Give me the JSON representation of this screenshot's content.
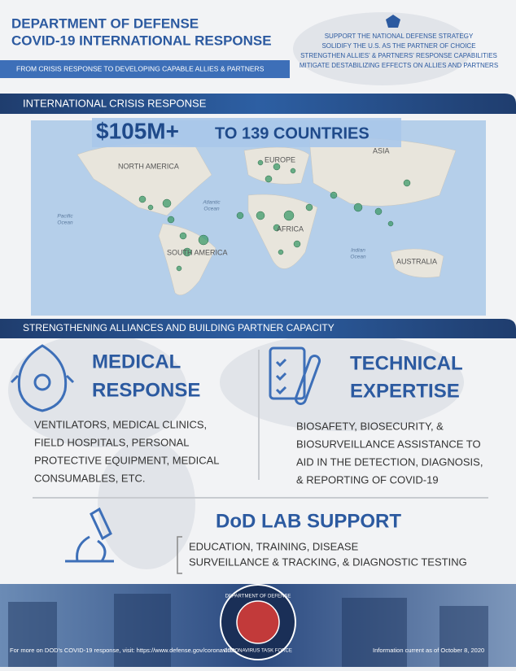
{
  "header": {
    "title": [
      "DEPARTMENT OF DEFENSE",
      "COVID-19 INTERNATIONAL RESPONSE"
    ],
    "subtitle": "FROM CRISIS RESPONSE TO DEVELOPING CAPABLE ALLIES & PARTNERS",
    "goals": [
      "SUPPORT THE NATIONAL DEFENSE STRATEGY",
      "SOLIDIFY THE U.S. AS THE PARTNER OF CHOICE",
      "STRENGTHEN ALLIES' & PARTNERS' RESPONSE CAPABILITIES",
      "MITIGATE DESTABILIZING EFFECTS ON ALLIES AND PARTNERS"
    ]
  },
  "crisis": {
    "heading": "INTERNATIONAL CRISIS RESPONSE",
    "amount": "$105M+",
    "countries": "TO 139 COUNTRIES",
    "map_labels": [
      "NORTH AMERICA",
      "EUROPE",
      "ASIA",
      "AFRICA",
      "SOUTH AMERICA",
      "AUSTRALIA"
    ],
    "ocean_labels": [
      [
        "Atlantic",
        "Ocean"
      ],
      [
        "Pacific",
        "Ocean"
      ],
      [
        "Indian",
        "Ocean"
      ]
    ]
  },
  "alliances": {
    "heading": "STRENGTHENING ALLIANCES AND BUILDING PARTNER CAPACITY",
    "medical": {
      "title": [
        "MEDICAL",
        "RESPONSE"
      ],
      "text": [
        "VENTILATORS, MEDICAL CLINICS,",
        "FIELD HOSPITALS, PERSONAL",
        "PROTECTIVE EQUIPMENT, MEDICAL",
        "CONSUMABLES, ETC."
      ]
    },
    "technical": {
      "title": [
        "TECHNICAL",
        "EXPERTISE"
      ],
      "text": [
        "BIOSAFETY, BIOSECURITY, &",
        "BIOSURVEILLANCE ASSISTANCE  TO",
        "AID IN THE DETECTION, DIAGNOSIS,",
        "& REPORTING OF COVID-19"
      ]
    },
    "lab": {
      "title": "DoD LAB SUPPORT",
      "text": [
        "EDUCATION, TRAINING, DISEASE",
        "SURVEILLANCE & TRACKING, & DIAGNOSTIC TESTING"
      ]
    }
  },
  "footer": {
    "seal": [
      "DEPARTMENT OF DEFENSE",
      "CORONAVIRUS TASK FORCE"
    ],
    "more_info": "For more on DOD's COVID-19 response, visit: https://www.defense.gov/coronavirus",
    "current_as_of": "Information current as of October 8, 2020"
  }
}
